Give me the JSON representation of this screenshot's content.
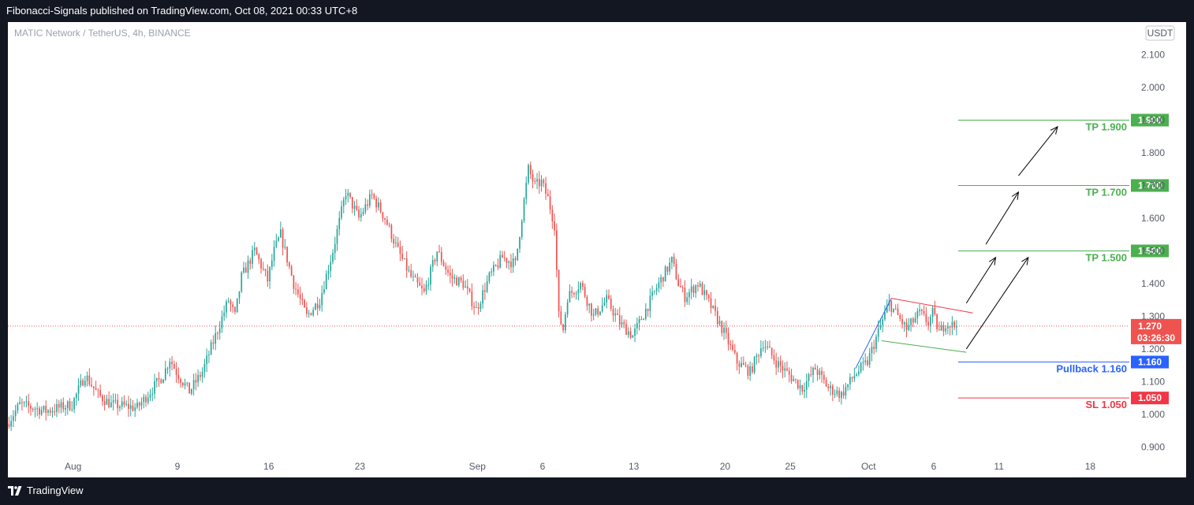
{
  "header": {
    "text": "Fibonacci-Signals published on TradingView.com, Oct 08, 2021 00:33 UTC+8"
  },
  "footer": {
    "brand": "TradingView"
  },
  "chart_data": {
    "type": "candlestick",
    "symbol": "MATIC Network / TetherUS, 4h, BINANCE",
    "currency": "USDT",
    "ylim": [
      0.86,
      2.2
    ],
    "y_ticks": [
      "2.100",
      "2.000",
      "1.900",
      "1.800",
      "1.700",
      "1.600",
      "1.500",
      "1.400",
      "1.300",
      "1.200",
      "1.100",
      "1.000",
      "0.900"
    ],
    "y_tick_values": [
      2.1,
      2.0,
      1.9,
      1.8,
      1.7,
      1.6,
      1.5,
      1.4,
      1.3,
      1.2,
      1.1,
      1.0,
      0.9
    ],
    "x_ticks": [
      {
        "label": "Aug",
        "date": "2021-08-01"
      },
      {
        "label": "9",
        "date": "2021-08-09"
      },
      {
        "label": "16",
        "date": "2021-08-16"
      },
      {
        "label": "23",
        "date": "2021-08-23"
      },
      {
        "label": "Sep",
        "date": "2021-09-01"
      },
      {
        "label": "6",
        "date": "2021-09-06"
      },
      {
        "label": "13",
        "date": "2021-09-13"
      },
      {
        "label": "20",
        "date": "2021-09-20"
      },
      {
        "label": "25",
        "date": "2021-09-25"
      },
      {
        "label": "Oct",
        "date": "2021-10-01"
      },
      {
        "label": "6",
        "date": "2021-10-06"
      },
      {
        "label": "11",
        "date": "2021-10-11"
      },
      {
        "label": "18",
        "date": "2021-10-18"
      }
    ],
    "x_range": [
      "2021-07-27",
      "2021-10-21"
    ],
    "price_path": [
      [
        "2021-07-27",
        0.97
      ],
      [
        "2021-07-28",
        1.03
      ],
      [
        "2021-07-30",
        1.01
      ],
      [
        "2021-08-01",
        1.03
      ],
      [
        "2021-08-02",
        1.12
      ],
      [
        "2021-08-03",
        1.06
      ],
      [
        "2021-08-04",
        1.03
      ],
      [
        "2021-08-06",
        1.02
      ],
      [
        "2021-08-08",
        1.12
      ],
      [
        "2021-08-08 12:00",
        1.17
      ],
      [
        "2021-08-09",
        1.13
      ],
      [
        "2021-08-10",
        1.07
      ],
      [
        "2021-08-11",
        1.13
      ],
      [
        "2021-08-12",
        1.24
      ],
      [
        "2021-08-13",
        1.35
      ],
      [
        "2021-08-13 12:00",
        1.3
      ],
      [
        "2021-08-14",
        1.42
      ],
      [
        "2021-08-15",
        1.5
      ],
      [
        "2021-08-16",
        1.41
      ],
      [
        "2021-08-16 12:00",
        1.5
      ],
      [
        "2021-08-17",
        1.55
      ],
      [
        "2021-08-18",
        1.4
      ],
      [
        "2021-08-19",
        1.3
      ],
      [
        "2021-08-20",
        1.35
      ],
      [
        "2021-08-21",
        1.5
      ],
      [
        "2021-08-22",
        1.68
      ],
      [
        "2021-08-23",
        1.6
      ],
      [
        "2021-08-24",
        1.67
      ],
      [
        "2021-08-25",
        1.6
      ],
      [
        "2021-08-26",
        1.5
      ],
      [
        "2021-08-27",
        1.42
      ],
      [
        "2021-08-28",
        1.37
      ],
      [
        "2021-08-29",
        1.5
      ],
      [
        "2021-08-30",
        1.42
      ],
      [
        "2021-08-31",
        1.4
      ],
      [
        "2021-09-01",
        1.32
      ],
      [
        "2021-09-02",
        1.42
      ],
      [
        "2021-09-03",
        1.48
      ],
      [
        "2021-09-04",
        1.46
      ],
      [
        "2021-09-05",
        1.75
      ],
      [
        "2021-09-05 12:00",
        1.7
      ],
      [
        "2021-09-06",
        1.71
      ],
      [
        "2021-09-06 12:00",
        1.66
      ],
      [
        "2021-09-07",
        1.58
      ],
      [
        "2021-09-07 08:00",
        1.3
      ],
      [
        "2021-09-07 16:00",
        1.26
      ],
      [
        "2021-09-08",
        1.36
      ],
      [
        "2021-09-09",
        1.4
      ],
      [
        "2021-09-10",
        1.3
      ],
      [
        "2021-09-11",
        1.35
      ],
      [
        "2021-09-12",
        1.28
      ],
      [
        "2021-09-13",
        1.24
      ],
      [
        "2021-09-14",
        1.32
      ],
      [
        "2021-09-15",
        1.4
      ],
      [
        "2021-09-16",
        1.47
      ],
      [
        "2021-09-16 12:00",
        1.4
      ],
      [
        "2021-09-17",
        1.36
      ],
      [
        "2021-09-18",
        1.4
      ],
      [
        "2021-09-19",
        1.33
      ],
      [
        "2021-09-20",
        1.25
      ],
      [
        "2021-09-21",
        1.16
      ],
      [
        "2021-09-22",
        1.13
      ],
      [
        "2021-09-23",
        1.22
      ],
      [
        "2021-09-24",
        1.16
      ],
      [
        "2021-09-25",
        1.12
      ],
      [
        "2021-09-26",
        1.08
      ],
      [
        "2021-09-27",
        1.14
      ],
      [
        "2021-09-28",
        1.08
      ],
      [
        "2021-09-29",
        1.06
      ],
      [
        "2021-09-30",
        1.12
      ],
      [
        "2021-10-01",
        1.16
      ],
      [
        "2021-10-02",
        1.27
      ],
      [
        "2021-10-02 16:00",
        1.34
      ],
      [
        "2021-10-03",
        1.32
      ],
      [
        "2021-10-04",
        1.26
      ],
      [
        "2021-10-05",
        1.31
      ],
      [
        "2021-10-05 16:00",
        1.28
      ],
      [
        "2021-10-06",
        1.31
      ],
      [
        "2021-10-06 12:00",
        1.25
      ],
      [
        "2021-10-07",
        1.28
      ],
      [
        "2021-10-07 16:00",
        1.27
      ]
    ],
    "current_price": {
      "value": 1.27,
      "label": "1.270",
      "countdown": "03:26:30"
    },
    "levels": [
      {
        "price": 1.9,
        "tag": "1.900",
        "text": "TP 1.900",
        "color": "#4caf50"
      },
      {
        "price": 1.7,
        "tag": "1.700",
        "text": "TP 1.700",
        "color": "#4caf50"
      },
      {
        "price": 1.5,
        "tag": "1.500",
        "text": "TP 1.500",
        "color": "#4caf50"
      },
      {
        "price": 1.16,
        "tag": "1.160",
        "text": "Pullback 1.160",
        "color": "#2962ff"
      },
      {
        "price": 1.05,
        "tag": "1.050",
        "text": "SL 1.050",
        "color": "#f23645"
      }
    ],
    "trend_lines": [
      {
        "from": [
          "2021-09-30",
          1.14
        ],
        "to": [
          "2021-10-02 18:00",
          1.355
        ],
        "color": "#2962ff"
      },
      {
        "from": [
          "2021-10-02 18:00",
          1.355
        ],
        "to": [
          "2021-10-09",
          1.31
        ],
        "color": "#f23645"
      },
      {
        "from": [
          "2021-10-02",
          1.225
        ],
        "to": [
          "2021-10-08 12:00",
          1.19
        ],
        "color": "#4caf50"
      }
    ],
    "arrows": [
      {
        "from": [
          "2021-10-08 12:00",
          1.34
        ],
        "to": [
          "2021-10-10 18:00",
          1.48
        ]
      },
      {
        "from": [
          "2021-10-10",
          1.52
        ],
        "to": [
          "2021-10-12 12:00",
          1.68
        ]
      },
      {
        "from": [
          "2021-10-12 12:00",
          1.73
        ],
        "to": [
          "2021-10-15 12:00",
          1.88
        ]
      },
      {
        "from": [
          "2021-10-08 12:00",
          1.2
        ],
        "to": [
          "2021-10-13 06:00",
          1.48
        ]
      }
    ],
    "colors": {
      "up": "#26a69a",
      "down": "#ef5350"
    }
  }
}
